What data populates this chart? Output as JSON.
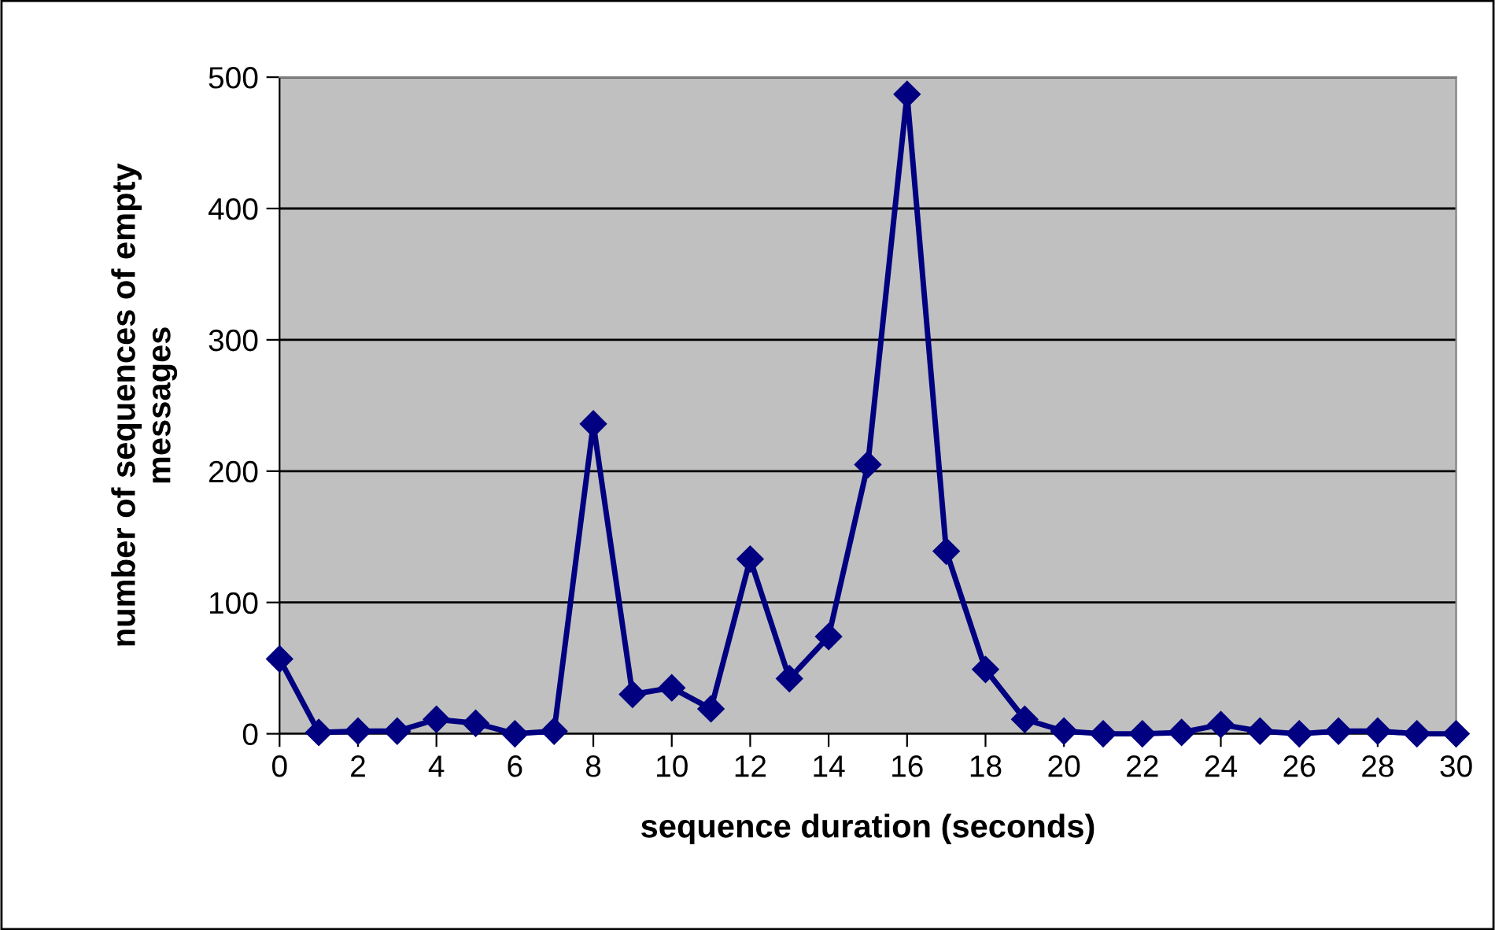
{
  "chart_data": {
    "type": "line",
    "xlabel": "sequence duration (seconds)",
    "ylabel": "number of sequences of empty\nmessages",
    "x": [
      0,
      1,
      2,
      3,
      4,
      5,
      6,
      7,
      8,
      9,
      10,
      11,
      12,
      13,
      14,
      15,
      16,
      17,
      18,
      19,
      20,
      21,
      22,
      23,
      24,
      25,
      26,
      27,
      28,
      29,
      30
    ],
    "series": [
      {
        "color": "#000080",
        "values": [
          57,
          1,
          2,
          2,
          11,
          8,
          0,
          2,
          236,
          30,
          35,
          19,
          133,
          42,
          74,
          205,
          487,
          139,
          49,
          11,
          2,
          0,
          0,
          1,
          7,
          2,
          0,
          2,
          2,
          0,
          0
        ]
      }
    ],
    "xlim": [
      0,
      30
    ],
    "xticks": [
      0,
      2,
      4,
      6,
      8,
      10,
      12,
      14,
      16,
      18,
      20,
      22,
      24,
      26,
      28,
      30
    ],
    "ylim": [
      0,
      500
    ],
    "yticks": [
      0,
      100,
      200,
      300,
      400,
      500
    ],
    "grid": "y",
    "legend": false,
    "marker": "diamond",
    "line_style": "solid"
  }
}
